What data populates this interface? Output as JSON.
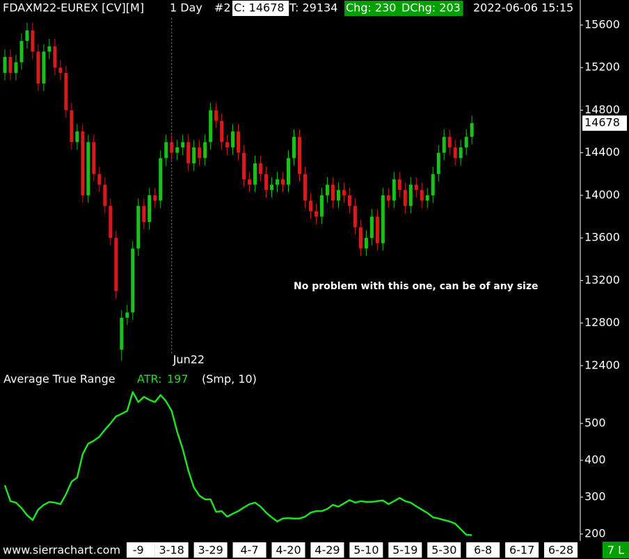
{
  "chart_data": {
    "type": "candlestick",
    "header": [
      {
        "text": "FDAXM22-EUREX [CV][M]",
        "background": null
      },
      {
        "text": "1 Day",
        "background": null
      },
      {
        "text": "#2",
        "background": null
      },
      {
        "text": "C: 14678",
        "background": "#ffffff"
      },
      {
        "text": "T: 29134",
        "background": null
      },
      {
        "text": "Chg: 230",
        "background": "#00a000"
      },
      {
        "text": "DChg: 203",
        "background": "#00a000"
      },
      {
        "text": "2022-06-06 15:15",
        "background": null
      }
    ],
    "annotation": "No problem with this one, can be of any size",
    "contract_marker": {
      "index": 30,
      "label": "Jun22"
    },
    "up_color": "#1ebe1e",
    "down_color": "#d01e1e",
    "last_price": 14678,
    "ohlc": {
      "open": [
        15150,
        15300,
        15150,
        15250,
        15450,
        15550,
        15350,
        15050,
        15350,
        15400,
        15200,
        15150,
        14800,
        14500,
        14600,
        14000,
        14500,
        14200,
        14100,
        13900,
        13600,
        12550,
        12850,
        12900,
        13500,
        13900,
        13750,
        14000,
        13950,
        14350,
        14500,
        14400,
        14450,
        14500,
        14300,
        14450,
        14350,
        14500,
        14800,
        14700,
        14500,
        14450,
        14600,
        14400,
        14150,
        14100,
        14300,
        14200,
        14050,
        14100,
        14150,
        14100,
        14350,
        14550,
        14200,
        13950,
        13850,
        13800,
        14000,
        14100,
        13950,
        14050,
        14000,
        13900,
        13700,
        13500,
        13600,
        13800,
        13550,
        14000,
        13950,
        14150,
        14050,
        13900,
        14100,
        14050,
        13950,
        14000,
        14200,
        14400,
        14550,
        14450,
        14350,
        14450,
        14550
      ],
      "high": [
        15370,
        15370,
        15320,
        15520,
        15620,
        15620,
        15420,
        15420,
        15470,
        15470,
        15270,
        15220,
        14870,
        14670,
        14670,
        14570,
        14570,
        14270,
        14170,
        13970,
        13670,
        12920,
        12970,
        13570,
        13970,
        13970,
        14070,
        14070,
        14420,
        14570,
        14570,
        14520,
        14570,
        14570,
        14520,
        14520,
        14570,
        14870,
        14870,
        14770,
        14570,
        14670,
        14670,
        14470,
        14220,
        14370,
        14370,
        14270,
        14170,
        14220,
        14220,
        14420,
        14620,
        14620,
        14270,
        14020,
        13920,
        14070,
        14170,
        14170,
        14120,
        14120,
        14070,
        13970,
        13770,
        13670,
        13870,
        13870,
        14070,
        14070,
        14220,
        14220,
        14120,
        14170,
        14170,
        14120,
        14070,
        14270,
        14470,
        14620,
        14620,
        14520,
        14520,
        14620,
        14748
      ],
      "low": [
        15080,
        15080,
        15080,
        15180,
        15380,
        15280,
        14980,
        14980,
        15280,
        15130,
        15080,
        14730,
        14430,
        14430,
        13930,
        13930,
        14130,
        14030,
        13830,
        13530,
        13030,
        12450,
        12780,
        12830,
        13430,
        13680,
        13680,
        13880,
        13880,
        14280,
        14330,
        14330,
        14380,
        14230,
        14230,
        14280,
        14280,
        14430,
        14630,
        14430,
        14380,
        14380,
        14330,
        14080,
        14030,
        14030,
        14130,
        13980,
        13980,
        14030,
        14030,
        14030,
        14280,
        14130,
        13880,
        13780,
        13730,
        13730,
        13930,
        13880,
        13880,
        13930,
        13830,
        13630,
        13430,
        13430,
        13530,
        13480,
        13480,
        13880,
        13880,
        13980,
        13830,
        13830,
        13980,
        13880,
        13880,
        13930,
        14130,
        14330,
        14380,
        14280,
        14280,
        14380,
        14480
      ],
      "close": [
        15300,
        15150,
        15250,
        15450,
        15550,
        15350,
        15050,
        15350,
        15400,
        15200,
        15150,
        14800,
        14500,
        14600,
        14000,
        14500,
        14200,
        14100,
        13900,
        13600,
        13100,
        12850,
        12900,
        13500,
        13900,
        13750,
        14000,
        13950,
        14350,
        14500,
        14400,
        14450,
        14500,
        14300,
        14450,
        14350,
        14500,
        14800,
        14700,
        14500,
        14450,
        14600,
        14400,
        14150,
        14100,
        14300,
        14200,
        14050,
        14100,
        14150,
        14100,
        14350,
        14550,
        14200,
        13950,
        13850,
        13800,
        14000,
        14100,
        13950,
        14050,
        14000,
        13900,
        13700,
        13500,
        13600,
        13800,
        13550,
        14000,
        13950,
        14150,
        14050,
        13900,
        14100,
        14050,
        13950,
        14000,
        14200,
        14400,
        14550,
        14450,
        14350,
        14450,
        14550,
        14678
      ]
    },
    "ylim": [
      12360,
      15835
    ],
    "yticks": [
      12400,
      12800,
      13200,
      13600,
      14000,
      14400,
      14800,
      15200,
      15600
    ],
    "xlim": [
      -0.875,
      103.5
    ],
    "xticks": [
      {
        "value": 24,
        "label": "-9"
      },
      {
        "value": 30,
        "label": "3-18"
      },
      {
        "value": 37,
        "label": "3-29"
      },
      {
        "value": 44,
        "label": "4-7"
      },
      {
        "value": 51,
        "label": "4-20"
      },
      {
        "value": 58,
        "label": "4-29"
      },
      {
        "value": 65,
        "label": "5-10"
      },
      {
        "value": 72,
        "label": "5-19"
      },
      {
        "value": 79,
        "label": "5-30"
      },
      {
        "value": 86,
        "label": "6-8"
      },
      {
        "value": 93,
        "label": "6-17"
      },
      {
        "value": 100,
        "label": "6-28"
      }
    ],
    "atr": {
      "name": "Average True Range",
      "value_label": "ATR:",
      "current": 197,
      "params": "(Smp, 10)",
      "color": "#22e022",
      "values": [
        332,
        289,
        285,
        270,
        251,
        238,
        266,
        279,
        287,
        285,
        281,
        308,
        342,
        353,
        417,
        445,
        453,
        464,
        483,
        500,
        519,
        526,
        534,
        585,
        558,
        572,
        564,
        558,
        577,
        560,
        534,
        477,
        430,
        372,
        326,
        304,
        294,
        294,
        260,
        262,
        247,
        255,
        262,
        272,
        281,
        285,
        274,
        258,
        245,
        234,
        242,
        243,
        242,
        242,
        247,
        258,
        262,
        262,
        268,
        279,
        274,
        283,
        292,
        285,
        289,
        287,
        287,
        289,
        291,
        281,
        289,
        298,
        289,
        285,
        275,
        266,
        257,
        245,
        242,
        238,
        234,
        228,
        213,
        198,
        197
      ],
      "ylim": [
        183,
        600
      ],
      "yticks": [
        200,
        300,
        400,
        500
      ]
    },
    "footer": {
      "site": "www.sierrachart.com",
      "status": "7 L"
    }
  }
}
